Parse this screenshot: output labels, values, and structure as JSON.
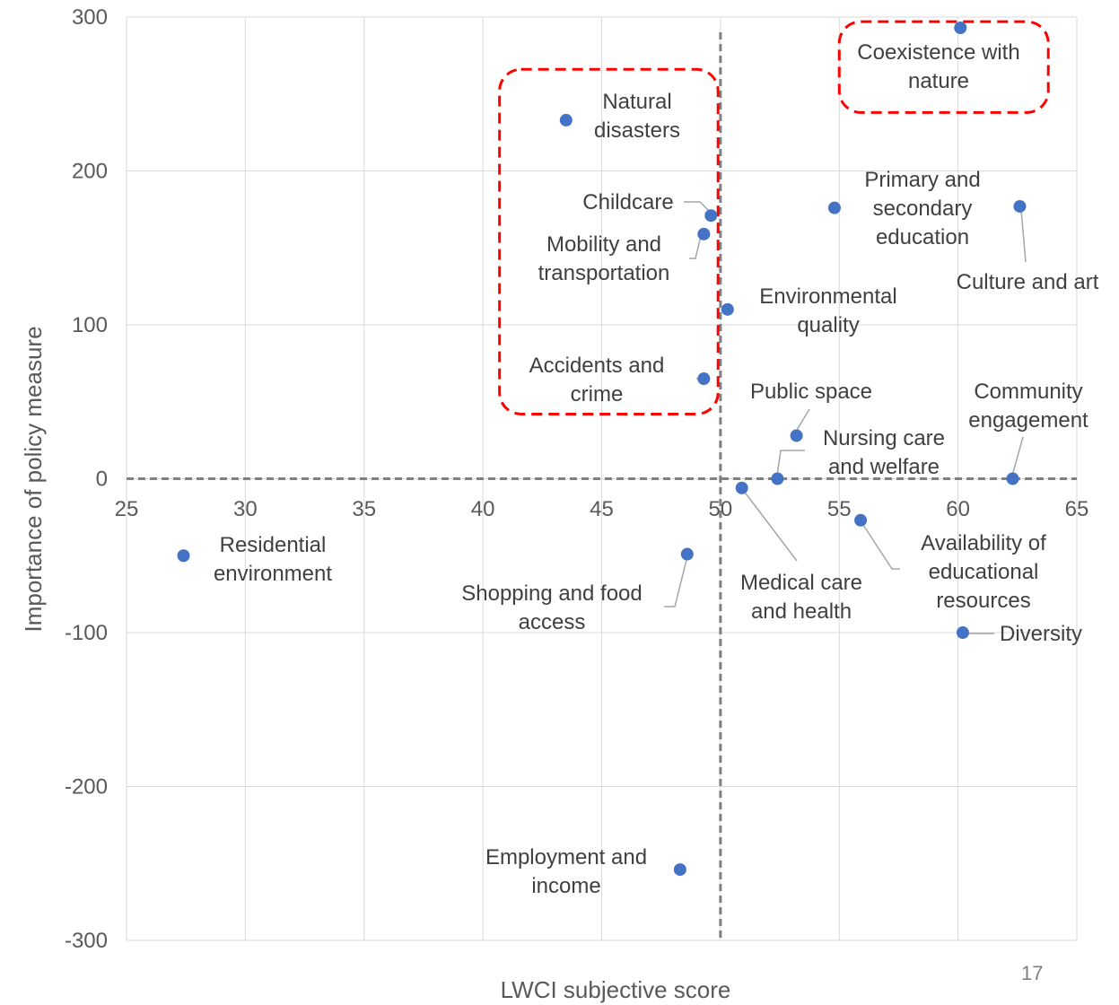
{
  "page_number": "17",
  "chart_data": {
    "type": "scatter",
    "xlabel": "LWCI subjective score",
    "ylabel": "Importance of policy measure",
    "xlim": [
      25,
      65
    ],
    "ylim": [
      -300,
      300
    ],
    "x_ticks": [
      25,
      30,
      35,
      40,
      45,
      50,
      55,
      60,
      65
    ],
    "y_ticks": [
      300,
      200,
      100,
      0,
      -100,
      -200,
      -300
    ],
    "grid": "on",
    "legend": "none",
    "marker_color": "#4472C4",
    "reference_lines": [
      {
        "axis": "x",
        "value": 50,
        "style": "dashed",
        "color": "#808080"
      },
      {
        "axis": "y",
        "value": 0,
        "style": "dashed",
        "color": "#808080"
      }
    ],
    "highlight_color": "#FF0000",
    "highlight_regions": [
      {
        "label": "left-upper group",
        "x_range": [
          40.7,
          49.9
        ],
        "y_range": [
          42,
          266
        ]
      },
      {
        "label": "top-right group",
        "x_range": [
          55.0,
          63.8
        ],
        "y_range": [
          238,
          297
        ]
      }
    ],
    "points": [
      {
        "label": "Coexistence with nature",
        "x": 60.1,
        "y": 293
      },
      {
        "label": "Natural disasters",
        "x": 43.5,
        "y": 233
      },
      {
        "label": "Childcare",
        "x": 49.6,
        "y": 171
      },
      {
        "label": "Mobility and transportation",
        "x": 49.3,
        "y": 159
      },
      {
        "label": "Primary and secondary education",
        "x": 54.8,
        "y": 176
      },
      {
        "label": "Culture and art",
        "x": 62.6,
        "y": 177
      },
      {
        "label": "Environmental quality",
        "x": 50.3,
        "y": 110
      },
      {
        "label": "Accidents and crime",
        "x": 49.3,
        "y": 65
      },
      {
        "label": "Public space",
        "x": 53.2,
        "y": 28
      },
      {
        "label": "Nursing care and welfare",
        "x": 52.4,
        "y": 0
      },
      {
        "label": "Community engagement",
        "x": 62.3,
        "y": 0
      },
      {
        "label": "Medical care and health",
        "x": 50.9,
        "y": -6
      },
      {
        "label": "Availability of educational resources",
        "x": 55.9,
        "y": -27
      },
      {
        "label": "Residential environment",
        "x": 27.4,
        "y": -50
      },
      {
        "label": "Shopping and food access",
        "x": 48.6,
        "y": -49
      },
      {
        "label": "Diversity",
        "x": 60.2,
        "y": -100
      },
      {
        "label": "Employment and income",
        "x": 48.3,
        "y": -254
      }
    ]
  }
}
